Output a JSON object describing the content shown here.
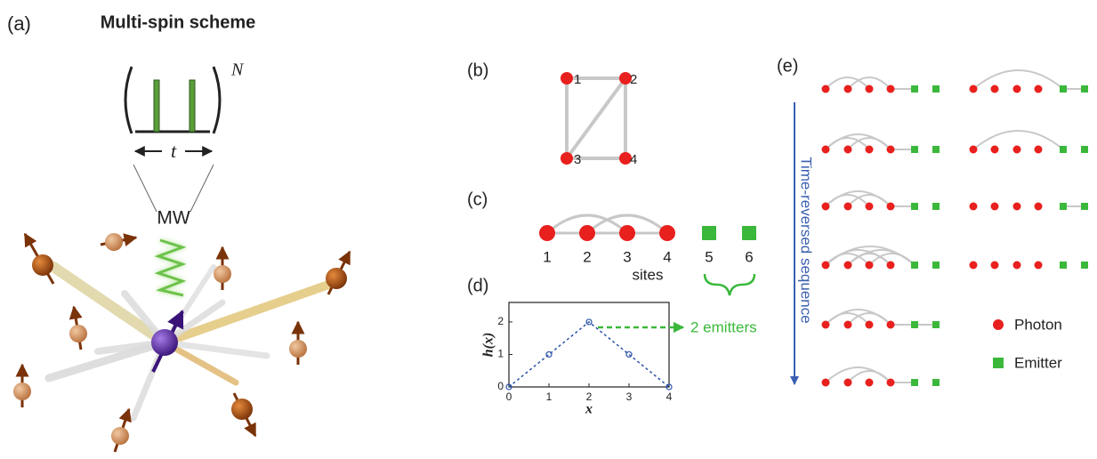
{
  "panel_a": {
    "label": "(a)",
    "title": "Multi-spin scheme",
    "repeat": "N",
    "interval": "t",
    "drive": "MW"
  },
  "panel_b": {
    "label": "(b)",
    "nodes": [
      {
        "label": "1"
      },
      {
        "label": "2"
      },
      {
        "label": "3"
      },
      {
        "label": "4"
      }
    ]
  },
  "panel_c": {
    "label": "(c)",
    "sites": [
      "1",
      "2",
      "3",
      "4",
      "5",
      "6"
    ],
    "axis_label": "sites"
  },
  "chart_data": {
    "type": "line",
    "label": "(d)",
    "x": [
      0,
      1,
      2,
      3,
      4
    ],
    "values": [
      0,
      1,
      2,
      1,
      0
    ],
    "color": "#2a52a8",
    "xlim": [
      0,
      4
    ],
    "ylim": [
      0,
      2.6
    ],
    "xticks": [
      0,
      1,
      2,
      3,
      4
    ],
    "yticks": [
      0,
      1,
      2
    ],
    "x_label": "x",
    "y_label": "h(x)",
    "annotation": "2 emitters"
  },
  "panel_e": {
    "label": "(e)",
    "arrow_label": "Time-reversed sequence",
    "legend": [
      {
        "name": "Photon",
        "color": "#e8201e"
      },
      {
        "name": "Emitter",
        "color": "#3bb83b"
      }
    ]
  }
}
